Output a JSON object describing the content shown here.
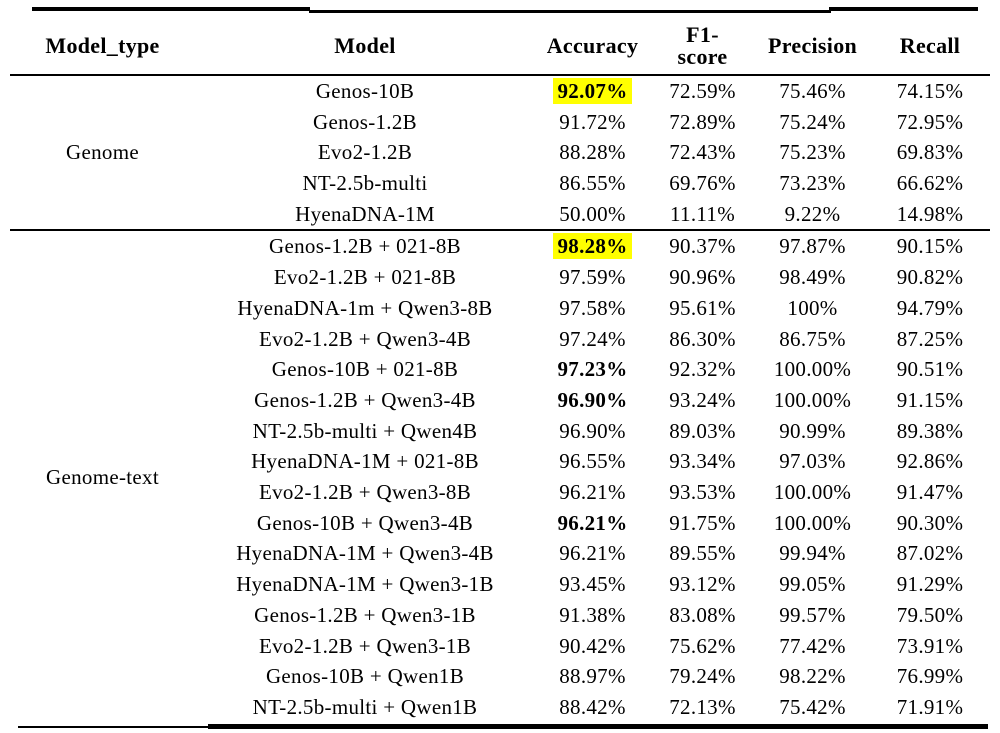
{
  "colors": {
    "highlight": "#ffff00",
    "rule": "#000000",
    "text": "#000000",
    "background": "#ffffff"
  },
  "table": {
    "headers": {
      "model_type": "Model_type",
      "model": "Model",
      "accuracy": "Accuracy",
      "f1_line1": "F1-",
      "f1_line2": "score",
      "precision": "Precision",
      "recall": "Recall"
    },
    "sections": [
      {
        "model_type": "Genome",
        "rows": [
          {
            "model": "Genos-10B",
            "accuracy": "92.07%",
            "f1": "72.59%",
            "precision": "75.46%",
            "recall": "74.15%",
            "accuracy_style": "highlight"
          },
          {
            "model": "Genos-1.2B",
            "accuracy": "91.72%",
            "f1": "72.89%",
            "precision": "75.24%",
            "recall": "72.95%",
            "accuracy_style": "normal"
          },
          {
            "model": "Evo2-1.2B",
            "accuracy": "88.28%",
            "f1": "72.43%",
            "precision": "75.23%",
            "recall": "69.83%",
            "accuracy_style": "normal"
          },
          {
            "model": "NT-2.5b-multi",
            "accuracy": "86.55%",
            "f1": "69.76%",
            "precision": "73.23%",
            "recall": "66.62%",
            "accuracy_style": "normal"
          },
          {
            "model": "HyenaDNA-1M",
            "accuracy": "50.00%",
            "f1": "11.11%",
            "precision": "9.22%",
            "recall": "14.98%",
            "accuracy_style": "normal"
          }
        ]
      },
      {
        "model_type": "Genome-text",
        "rows": [
          {
            "model": "Genos-1.2B + 021-8B",
            "accuracy": "98.28%",
            "f1": "90.37%",
            "precision": "97.87%",
            "recall": "90.15%",
            "accuracy_style": "highlight"
          },
          {
            "model": "Evo2-1.2B + 021-8B",
            "accuracy": "97.59%",
            "f1": "90.96%",
            "precision": "98.49%",
            "recall": "90.82%",
            "accuracy_style": "normal"
          },
          {
            "model": "HyenaDNA-1m + Qwen3-8B",
            "accuracy": "97.58%",
            "f1": "95.61%",
            "precision": "100%",
            "recall": "94.79%",
            "accuracy_style": "normal"
          },
          {
            "model": "Evo2-1.2B + Qwen3-4B",
            "accuracy": "97.24%",
            "f1": "86.30%",
            "precision": "86.75%",
            "recall": "87.25%",
            "accuracy_style": "normal"
          },
          {
            "model": "Genos-10B + 021-8B",
            "accuracy": "97.23%",
            "f1": "92.32%",
            "precision": "100.00%",
            "recall": "90.51%",
            "accuracy_style": "bold"
          },
          {
            "model": "Genos-1.2B + Qwen3-4B",
            "accuracy": "96.90%",
            "f1": "93.24%",
            "precision": "100.00%",
            "recall": "91.15%",
            "accuracy_style": "bold"
          },
          {
            "model": "NT-2.5b-multi + Qwen4B",
            "accuracy": "96.90%",
            "f1": "89.03%",
            "precision": "90.99%",
            "recall": "89.38%",
            "accuracy_style": "normal"
          },
          {
            "model": "HyenaDNA-1M + 021-8B",
            "accuracy": "96.55%",
            "f1": "93.34%",
            "precision": "97.03%",
            "recall": "92.86%",
            "accuracy_style": "normal"
          },
          {
            "model": "Evo2-1.2B + Qwen3-8B",
            "accuracy": "96.21%",
            "f1": "93.53%",
            "precision": "100.00%",
            "recall": "91.47%",
            "accuracy_style": "normal"
          },
          {
            "model": "Genos-10B + Qwen3-4B",
            "accuracy": "96.21%",
            "f1": "91.75%",
            "precision": "100.00%",
            "recall": "90.30%",
            "accuracy_style": "bold"
          },
          {
            "model": "HyenaDNA-1M + Qwen3-4B",
            "accuracy": "96.21%",
            "f1": "89.55%",
            "precision": "99.94%",
            "recall": "87.02%",
            "accuracy_style": "normal"
          },
          {
            "model": "HyenaDNA-1M + Qwen3-1B",
            "accuracy": "93.45%",
            "f1": "93.12%",
            "precision": "99.05%",
            "recall": "91.29%",
            "accuracy_style": "normal"
          },
          {
            "model": "Genos-1.2B + Qwen3-1B",
            "accuracy": "91.38%",
            "f1": "83.08%",
            "precision": "99.57%",
            "recall": "79.50%",
            "accuracy_style": "normal"
          },
          {
            "model": "Evo2-1.2B + Qwen3-1B",
            "accuracy": "90.42%",
            "f1": "75.62%",
            "precision": "77.42%",
            "recall": "73.91%",
            "accuracy_style": "normal"
          },
          {
            "model": "Genos-10B + Qwen1B",
            "accuracy": "88.97%",
            "f1": "79.24%",
            "precision": "98.22%",
            "recall": "76.99%",
            "accuracy_style": "normal"
          },
          {
            "model": "NT-2.5b-multi + Qwen1B",
            "accuracy": "88.42%",
            "f1": "72.13%",
            "precision": "75.42%",
            "recall": "71.91%",
            "accuracy_style": "normal"
          }
        ]
      }
    ]
  }
}
